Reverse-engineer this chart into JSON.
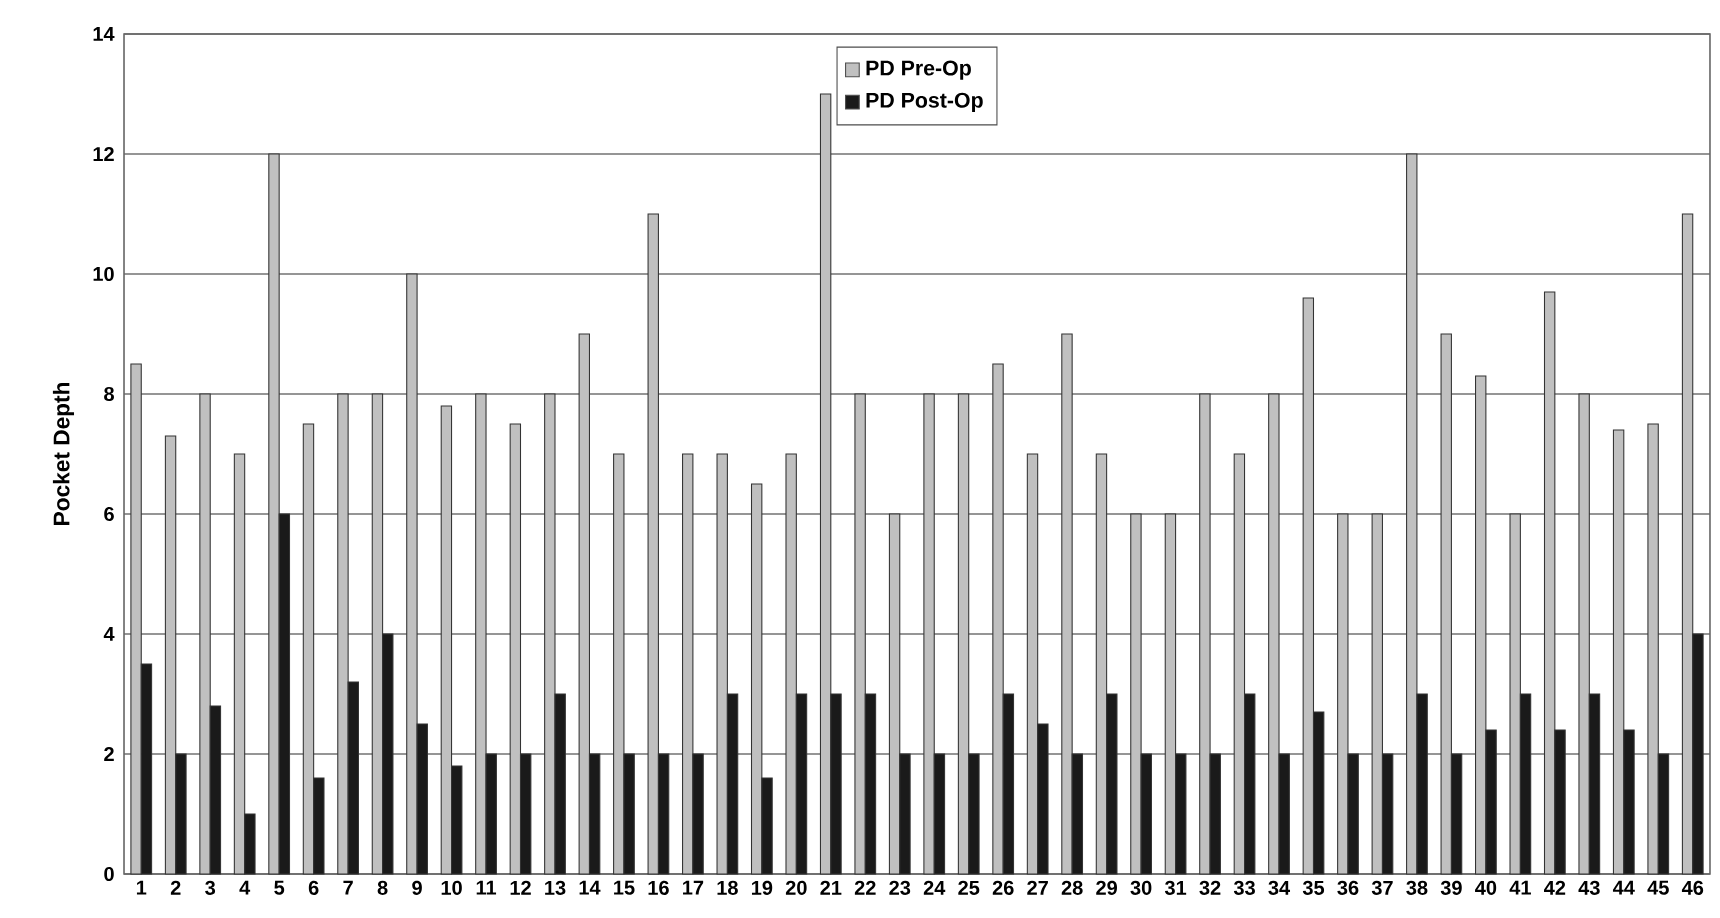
{
  "chart_data": {
    "type": "bar",
    "ylabel": "Pocket Depth",
    "categories": [
      "1",
      "2",
      "3",
      "4",
      "5",
      "6",
      "7",
      "8",
      "9",
      "10",
      "11",
      "12",
      "13",
      "14",
      "15",
      "16",
      "17",
      "18",
      "19",
      "20",
      "21",
      "22",
      "23",
      "24",
      "25",
      "26",
      "27",
      "28",
      "29",
      "30",
      "31",
      "32",
      "33",
      "34",
      "35",
      "36",
      "37",
      "38",
      "39",
      "40",
      "41",
      "42",
      "43",
      "44",
      "45",
      "46"
    ],
    "series": [
      {
        "name": "PD Pre-Op",
        "color": "#c0c0c0",
        "values": [
          8.5,
          7.3,
          8,
          7,
          12,
          7.5,
          8,
          8,
          10,
          7.8,
          8,
          7.5,
          8,
          9,
          7,
          11,
          7,
          7,
          6.5,
          7,
          13,
          8,
          6,
          8,
          8,
          8.5,
          7,
          9,
          7,
          6,
          6,
          8,
          7,
          8,
          9.6,
          6,
          6,
          12,
          9,
          8.3,
          6,
          9.7,
          8,
          7.4,
          7.5,
          11
        ]
      },
      {
        "name": "PD Post-Op",
        "color": "#1a1a1a",
        "values": [
          3.5,
          2,
          2.8,
          1,
          6,
          1.6,
          3.2,
          4,
          2.5,
          1.8,
          2,
          2,
          3,
          2,
          2,
          2,
          2,
          3,
          1.6,
          3,
          3,
          3,
          2,
          2,
          2,
          3,
          2.5,
          2,
          3,
          2,
          2,
          2,
          3,
          2,
          2.7,
          2,
          2,
          3,
          2,
          2.4,
          3,
          2.4,
          3,
          2.4,
          2,
          4
        ]
      }
    ],
    "ylim": [
      0,
      14
    ],
    "yticks": [
      0,
      2,
      4,
      6,
      8,
      10,
      12,
      14
    ],
    "grid": "y",
    "legend": "top"
  }
}
